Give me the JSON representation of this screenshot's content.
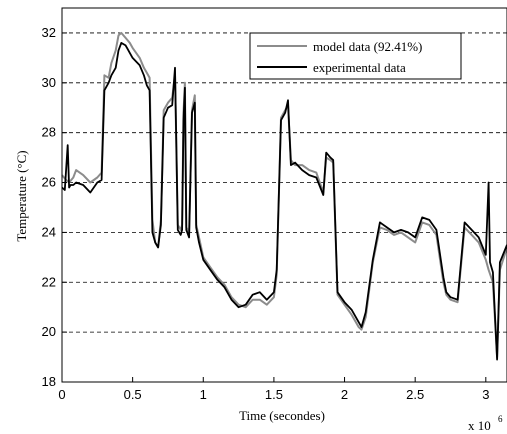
{
  "chart_data": {
    "type": "line",
    "xlabel": "Time (secondes)",
    "ylabel": "Temperature (°C)",
    "x_multiplier_base": "x 10",
    "x_multiplier_exp": "6",
    "xlim": [
      0,
      3.15
    ],
    "ylim": [
      18,
      33
    ],
    "xticks": [
      0,
      0.5,
      1,
      1.5,
      2,
      2.5,
      3
    ],
    "xtick_labels": [
      "0",
      "0.5",
      "1",
      "1.5",
      "2",
      "2.5",
      "3"
    ],
    "yticks": [
      18,
      20,
      22,
      24,
      26,
      28,
      30,
      32
    ],
    "ytick_labels": [
      "18",
      "20",
      "22",
      "24",
      "26",
      "28",
      "30",
      "32"
    ],
    "grid": "horizontal-dashed",
    "legend_position": "top-right",
    "series": [
      {
        "name": "model data (92.41%)",
        "color": "#8c8c8c",
        "x": [
          0,
          0.03,
          0.05,
          0.08,
          0.1,
          0.15,
          0.2,
          0.25,
          0.28,
          0.3,
          0.33,
          0.35,
          0.38,
          0.4,
          0.42,
          0.45,
          0.48,
          0.5,
          0.55,
          0.58,
          0.6,
          0.62,
          0.64,
          0.66,
          0.68,
          0.7,
          0.72,
          0.75,
          0.78,
          0.8,
          0.82,
          0.84,
          0.85,
          0.86,
          0.87,
          0.88,
          0.9,
          0.92,
          0.94,
          0.95,
          0.97,
          1.0,
          1.05,
          1.1,
          1.15,
          1.2,
          1.25,
          1.3,
          1.35,
          1.4,
          1.45,
          1.5,
          1.52,
          1.55,
          1.58,
          1.6,
          1.62,
          1.65,
          1.7,
          1.75,
          1.8,
          1.85,
          1.87,
          1.9,
          1.92,
          1.95,
          2.0,
          2.05,
          2.1,
          2.12,
          2.15,
          2.2,
          2.25,
          2.3,
          2.35,
          2.4,
          2.45,
          2.5,
          2.55,
          2.6,
          2.65,
          2.7,
          2.72,
          2.75,
          2.8,
          2.85,
          2.9,
          2.95,
          3.0,
          3.02,
          3.05,
          3.08,
          3.1,
          3.15
        ],
        "y": [
          26.3,
          26.1,
          26.0,
          26.2,
          26.5,
          26.3,
          26.0,
          26.2,
          26.4,
          30.3,
          30.2,
          30.8,
          31.3,
          31.9,
          32.0,
          31.8,
          31.6,
          31.4,
          31.0,
          30.6,
          30.4,
          30.2,
          24.5,
          23.6,
          23.4,
          24.5,
          28.9,
          29.2,
          29.4,
          30.3,
          24.3,
          24.1,
          24.3,
          28.8,
          30.0,
          24.2,
          24.0,
          28.9,
          29.5,
          24.3,
          23.8,
          23.0,
          22.6,
          22.2,
          21.9,
          21.4,
          21.1,
          21.0,
          21.3,
          21.3,
          21.1,
          21.4,
          22.3,
          28.6,
          28.9,
          29.1,
          26.9,
          26.7,
          26.7,
          26.5,
          26.4,
          25.6,
          27.0,
          26.9,
          26.8,
          21.5,
          21.1,
          20.7,
          20.2,
          20.1,
          20.6,
          22.8,
          24.2,
          24.1,
          23.9,
          24.0,
          23.8,
          23.6,
          24.4,
          24.3,
          23.9,
          22.0,
          21.5,
          21.3,
          21.2,
          24.2,
          23.9,
          23.6,
          22.9,
          22.5,
          22.0,
          19.0,
          22.5,
          23.4
        ]
      },
      {
        "name": "experimental data",
        "color": "#000000",
        "x": [
          0,
          0.02,
          0.04,
          0.05,
          0.06,
          0.08,
          0.1,
          0.15,
          0.2,
          0.25,
          0.28,
          0.3,
          0.33,
          0.35,
          0.38,
          0.4,
          0.42,
          0.45,
          0.48,
          0.5,
          0.55,
          0.58,
          0.6,
          0.62,
          0.64,
          0.66,
          0.68,
          0.7,
          0.72,
          0.75,
          0.78,
          0.8,
          0.82,
          0.84,
          0.85,
          0.86,
          0.87,
          0.88,
          0.9,
          0.92,
          0.94,
          0.95,
          0.97,
          1.0,
          1.05,
          1.1,
          1.15,
          1.2,
          1.25,
          1.3,
          1.35,
          1.4,
          1.45,
          1.5,
          1.52,
          1.55,
          1.58,
          1.6,
          1.62,
          1.65,
          1.7,
          1.75,
          1.8,
          1.85,
          1.87,
          1.9,
          1.92,
          1.95,
          2.0,
          2.05,
          2.1,
          2.12,
          2.15,
          2.2,
          2.25,
          2.3,
          2.35,
          2.4,
          2.45,
          2.5,
          2.55,
          2.6,
          2.65,
          2.7,
          2.72,
          2.75,
          2.8,
          2.85,
          2.9,
          2.95,
          3.0,
          3.02,
          3.03,
          3.05,
          3.08,
          3.1,
          3.15
        ],
        "y": [
          25.8,
          25.7,
          27.5,
          25.8,
          25.9,
          25.9,
          26.0,
          25.9,
          25.6,
          26.0,
          26.1,
          29.7,
          30.0,
          30.3,
          30.6,
          31.3,
          31.6,
          31.5,
          31.2,
          31.0,
          30.7,
          30.3,
          29.9,
          29.7,
          24.0,
          23.6,
          23.4,
          24.3,
          28.6,
          29.0,
          29.1,
          30.6,
          24.1,
          23.9,
          24.1,
          28.5,
          29.8,
          24.1,
          23.8,
          28.8,
          29.2,
          24.2,
          23.6,
          22.9,
          22.5,
          22.1,
          21.8,
          21.3,
          21.0,
          21.1,
          21.5,
          21.6,
          21.3,
          21.6,
          22.5,
          28.5,
          28.8,
          29.3,
          26.7,
          26.8,
          26.5,
          26.3,
          26.2,
          25.5,
          27.2,
          27.0,
          26.9,
          21.6,
          21.2,
          20.9,
          20.4,
          20.2,
          20.8,
          22.9,
          24.4,
          24.2,
          24.0,
          24.1,
          24.0,
          23.8,
          24.6,
          24.5,
          24.1,
          22.2,
          21.6,
          21.4,
          21.3,
          24.4,
          24.1,
          23.8,
          23.1,
          26.0,
          22.8,
          22.4,
          18.9,
          22.8,
          23.5
        ]
      }
    ]
  }
}
